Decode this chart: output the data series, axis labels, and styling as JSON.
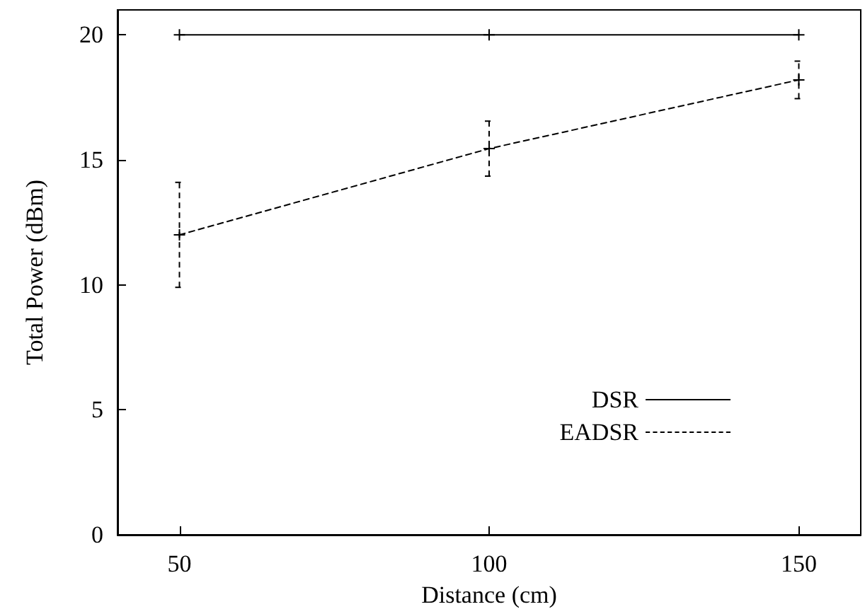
{
  "chart_data": {
    "type": "line",
    "xlabel": "Distance (cm)",
    "ylabel": "Total Power (dBm)",
    "x": [
      50,
      100,
      150
    ],
    "series": [
      {
        "name": "DSR",
        "color": "#000000",
        "values": [
          20,
          20,
          20
        ],
        "marker": "cross",
        "line_style": "solid"
      },
      {
        "name": "EADSR",
        "color": "#000000",
        "values": [
          12,
          15.45,
          18.2
        ],
        "errors": [
          2.1,
          1.1,
          0.75
        ],
        "marker": "cross",
        "line_style": "dashed"
      }
    ],
    "xlim": [
      40,
      160
    ],
    "xticks": [
      50,
      100,
      150
    ],
    "ylim": [
      0,
      21
    ],
    "yticks": [
      0,
      5,
      10,
      15,
      20
    ],
    "grid": false,
    "legend": "bottom right"
  }
}
